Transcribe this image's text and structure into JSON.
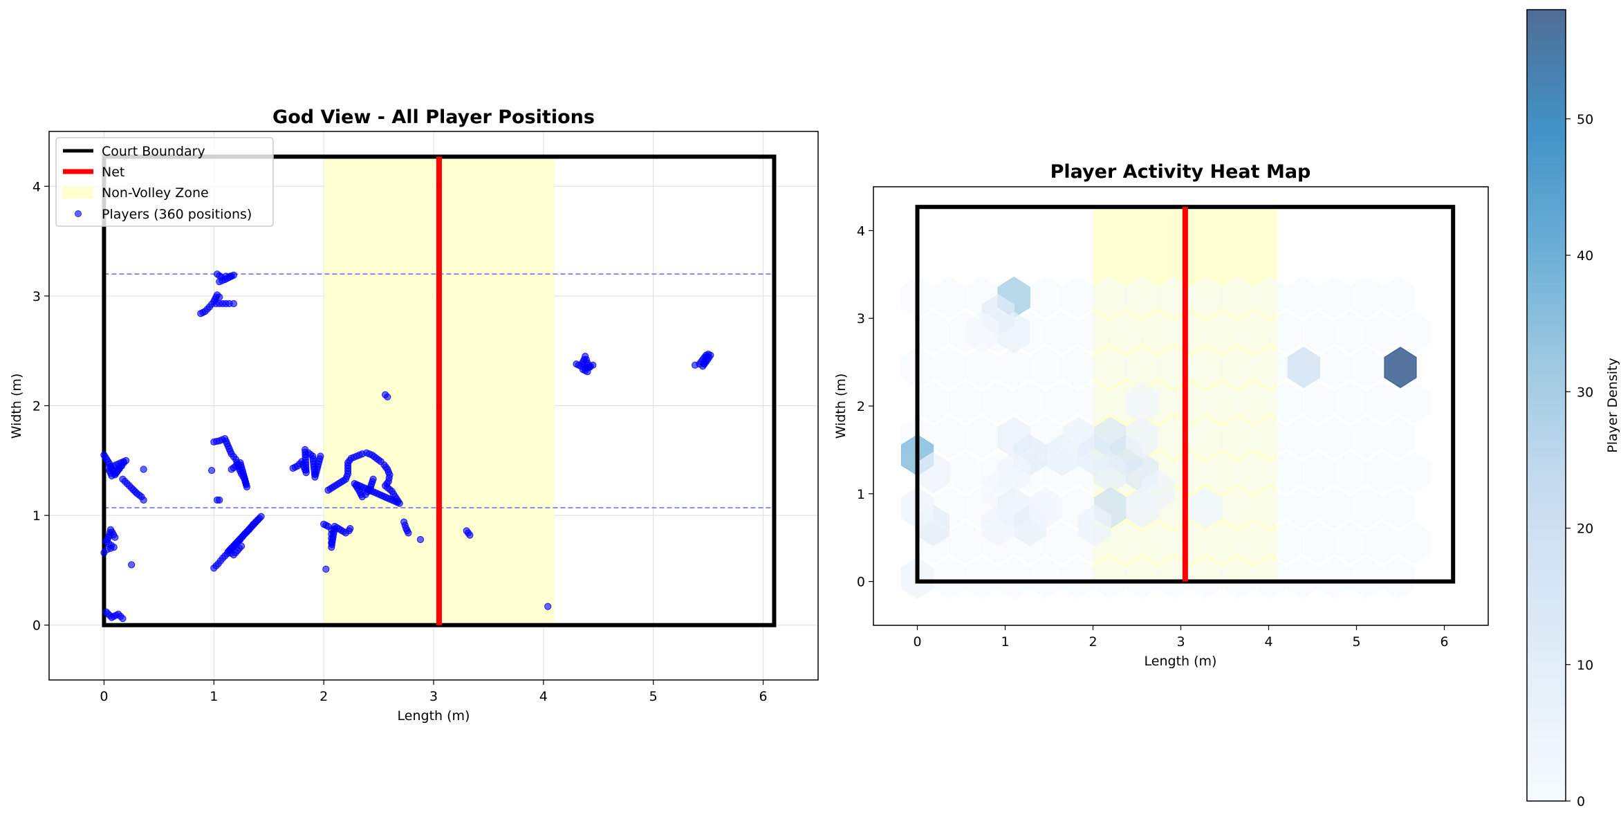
{
  "figure": {
    "colors": {
      "court": "#000000",
      "net": "#ff0000",
      "nvz_fill": "#ffffcc",
      "player": "#0000ff",
      "guide": "#6666ff",
      "grid": "#dddddd",
      "colormap_low": "#f7fbff",
      "colormap_high": "#08306b"
    }
  },
  "chart_data": [
    {
      "type": "scatter",
      "title": "God View - All Player Positions",
      "xlabel": "Length (m)",
      "ylabel": "Width (m)",
      "xlim": [
        -0.5,
        6.5
      ],
      "ylim": [
        -0.5,
        4.5
      ],
      "xticks": [
        0,
        1,
        2,
        3,
        4,
        5,
        6
      ],
      "yticks": [
        0,
        1,
        2,
        3,
        4
      ],
      "grid": true,
      "legend": {
        "placement": "top-left",
        "entries": [
          {
            "label": "Court Boundary",
            "kind": "line",
            "color": "#000000"
          },
          {
            "label": "Net",
            "kind": "line",
            "color": "#ff0000"
          },
          {
            "label": "Non-Volley Zone",
            "kind": "patch",
            "color": "#ffffcc"
          },
          {
            "label": "Players (360 positions)",
            "kind": "marker",
            "color": "#0000ff"
          }
        ]
      },
      "court": {
        "length": 6.1,
        "width": 4.27
      },
      "net_x": 3.05,
      "nvz": [
        2.0,
        4.1
      ],
      "guide_lines_y": [
        1.07,
        3.2
      ],
      "clusters": [
        {
          "path": [
            [
              0.88,
              2.84
            ],
            [
              0.92,
              2.86
            ],
            [
              0.96,
              2.9
            ],
            [
              1.0,
              2.95
            ],
            [
              1.03,
              3.01
            ],
            [
              1.05,
              2.99
            ]
          ]
        },
        {
          "path": [
            [
              1.02,
              2.93
            ],
            [
              1.08,
              2.93
            ],
            [
              1.14,
              2.93
            ],
            [
              1.18,
              2.93
            ]
          ]
        },
        {
          "path": [
            [
              1.03,
              3.2
            ],
            [
              1.07,
              3.17
            ],
            [
              1.11,
              3.18
            ],
            [
              1.15,
              3.18
            ],
            [
              1.18,
              3.19
            ],
            [
              1.1,
              3.15
            ],
            [
              1.05,
              3.13
            ]
          ]
        },
        {
          "path": [
            [
              0.0,
              1.55
            ],
            [
              0.05,
              1.47
            ],
            [
              0.08,
              1.4
            ],
            [
              0.1,
              1.37
            ],
            [
              0.14,
              1.43
            ],
            [
              0.18,
              1.48
            ],
            [
              0.2,
              1.5
            ],
            [
              0.04,
              1.43
            ],
            [
              0.07,
              1.36
            ],
            [
              0.12,
              1.4
            ],
            [
              0.16,
              1.45
            ]
          ]
        },
        {
          "path": [
            [
              0.17,
              1.33
            ],
            [
              0.21,
              1.29
            ],
            [
              0.25,
              1.25
            ],
            [
              0.3,
              1.2
            ],
            [
              0.34,
              1.17
            ],
            [
              0.36,
              1.14
            ]
          ]
        },
        {
          "point": [
            0.36,
            1.42
          ]
        },
        {
          "path": [
            [
              0.0,
              0.66
            ],
            [
              0.03,
              0.69
            ],
            [
              0.06,
              0.7
            ],
            [
              0.09,
              0.71
            ],
            [
              0.02,
              0.76
            ],
            [
              0.05,
              0.82
            ],
            [
              0.06,
              0.87
            ],
            [
              0.1,
              0.8
            ]
          ]
        },
        {
          "point": [
            0.25,
            0.55
          ]
        },
        {
          "path": [
            [
              0.02,
              0.12
            ],
            [
              0.07,
              0.07
            ],
            [
              0.13,
              0.1
            ],
            [
              0.17,
              0.06
            ]
          ]
        },
        {
          "path": [
            [
              1.0,
              1.67
            ],
            [
              1.05,
              1.68
            ],
            [
              1.1,
              1.7
            ],
            [
              1.13,
              1.63
            ],
            [
              1.16,
              1.56
            ],
            [
              1.2,
              1.51
            ],
            [
              1.22,
              1.45
            ],
            [
              1.25,
              1.38
            ],
            [
              1.28,
              1.33
            ],
            [
              1.3,
              1.26
            ],
            [
              1.24,
              1.48
            ],
            [
              1.16,
              1.42
            ]
          ]
        },
        {
          "point": [
            0.98,
            1.41
          ]
        },
        {
          "path": [
            [
              1.03,
              1.14
            ],
            [
              1.05,
              1.14
            ]
          ]
        },
        {
          "path": [
            [
              1.0,
              0.52
            ],
            [
              1.04,
              0.56
            ],
            [
              1.08,
              0.61
            ],
            [
              1.12,
              0.65
            ],
            [
              1.16,
              0.7
            ],
            [
              1.2,
              0.74
            ],
            [
              1.24,
              0.78
            ],
            [
              1.28,
              0.83
            ],
            [
              1.32,
              0.87
            ],
            [
              1.36,
              0.92
            ],
            [
              1.4,
              0.96
            ],
            [
              1.43,
              0.99
            ],
            [
              1.13,
              0.67
            ],
            [
              1.18,
              0.64
            ],
            [
              1.25,
              0.72
            ]
          ]
        },
        {
          "path": [
            [
              1.72,
              1.43
            ],
            [
              1.76,
              1.45
            ],
            [
              1.8,
              1.49
            ],
            [
              1.82,
              1.44
            ],
            [
              1.84,
              1.39
            ],
            [
              1.83,
              1.6
            ],
            [
              1.86,
              1.57
            ],
            [
              1.9,
              1.54
            ],
            [
              1.92,
              1.35
            ],
            [
              1.97,
              1.54
            ]
          ]
        },
        {
          "path": [
            [
              2.04,
              1.23
            ],
            [
              2.2,
              1.33
            ],
            [
              2.22,
              1.38
            ],
            [
              2.22,
              1.48
            ],
            [
              2.25,
              1.52
            ],
            [
              2.3,
              1.54
            ],
            [
              2.35,
              1.56
            ],
            [
              2.39,
              1.57
            ],
            [
              2.44,
              1.55
            ],
            [
              2.48,
              1.52
            ],
            [
              2.52,
              1.49
            ],
            [
              2.55,
              1.46
            ],
            [
              2.58,
              1.42
            ],
            [
              2.6,
              1.37
            ],
            [
              2.59,
              1.31
            ],
            [
              2.56,
              1.27
            ],
            [
              2.62,
              1.22
            ],
            [
              2.65,
              1.17
            ],
            [
              2.69,
              1.11
            ],
            [
              2.28,
              1.29
            ],
            [
              2.32,
              1.23
            ],
            [
              2.35,
              1.17
            ],
            [
              2.38,
              1.19
            ],
            [
              2.42,
              1.24
            ],
            [
              2.45,
              1.33
            ]
          ]
        },
        {
          "path": [
            [
              2.0,
              0.92
            ],
            [
              2.04,
              0.9
            ],
            [
              2.07,
              0.87
            ],
            [
              2.07,
              0.83
            ],
            [
              2.07,
              0.79
            ],
            [
              2.07,
              0.75
            ],
            [
              2.07,
              0.71
            ],
            [
              2.1,
              0.9
            ],
            [
              2.2,
              0.84
            ],
            [
              2.23,
              0.86
            ],
            [
              2.24,
              0.88
            ]
          ]
        },
        {
          "point": [
            2.02,
            0.51
          ]
        },
        {
          "path": [
            [
              2.56,
              2.1
            ],
            [
              2.58,
              2.08
            ]
          ]
        },
        {
          "path": [
            [
              2.73,
              0.94
            ],
            [
              2.75,
              0.88
            ],
            [
              2.77,
              0.84
            ]
          ]
        },
        {
          "point": [
            2.88,
            0.78
          ]
        },
        {
          "path": [
            [
              3.3,
              0.86
            ],
            [
              3.33,
              0.82
            ]
          ]
        },
        {
          "point": [
            4.04,
            0.17
          ]
        },
        {
          "path": [
            [
              4.3,
              2.38
            ],
            [
              4.34,
              2.36
            ],
            [
              4.37,
              2.42
            ],
            [
              4.38,
              2.45
            ],
            [
              4.4,
              2.39
            ],
            [
              4.42,
              2.35
            ],
            [
              4.45,
              2.37
            ],
            [
              4.36,
              2.33
            ],
            [
              4.4,
              2.31
            ]
          ]
        },
        {
          "path": [
            [
              5.38,
              2.37
            ],
            [
              5.42,
              2.38
            ],
            [
              5.45,
              2.42
            ],
            [
              5.48,
              2.46
            ],
            [
              5.5,
              2.47
            ],
            [
              5.45,
              2.36
            ],
            [
              5.48,
              2.4
            ],
            [
              5.52,
              2.46
            ]
          ]
        }
      ]
    },
    {
      "type": "heatmap",
      "title": "Player Activity Heat Map",
      "xlabel": "Length (m)",
      "ylabel": "Width (m)",
      "xlim": [
        -0.5,
        6.5
      ],
      "ylim": [
        -0.5,
        4.5
      ],
      "xticks": [
        0,
        1,
        2,
        3,
        4,
        5,
        6
      ],
      "yticks": [
        0,
        1,
        2,
        3,
        4
      ],
      "court": {
        "length": 6.1,
        "width": 4.27
      },
      "net_x": 3.05,
      "nvz": [
        2.0,
        4.1
      ],
      "hex_radius": 0.21,
      "colorbar": {
        "label": "Player Density",
        "min": 0,
        "max": 58,
        "ticks": [
          0,
          10,
          20,
          30,
          40,
          50
        ]
      },
      "hexbins": [
        {
          "x": 1.1,
          "y": 3.24,
          "v": 32
        },
        {
          "x": 0.92,
          "y": 3.04,
          "v": 10
        },
        {
          "x": 1.1,
          "y": 2.84,
          "v": 7
        },
        {
          "x": 0.74,
          "y": 2.84,
          "v": 2
        },
        {
          "x": 4.4,
          "y": 2.44,
          "v": 20
        },
        {
          "x": 5.5,
          "y": 2.44,
          "v": 58
        },
        {
          "x": 0.0,
          "y": 1.44,
          "v": 40
        },
        {
          "x": 0.18,
          "y": 1.24,
          "v": 4
        },
        {
          "x": 1.1,
          "y": 1.64,
          "v": 7
        },
        {
          "x": 1.28,
          "y": 1.44,
          "v": 10
        },
        {
          "x": 1.65,
          "y": 1.44,
          "v": 8
        },
        {
          "x": 1.84,
          "y": 1.64,
          "v": 5
        },
        {
          "x": 2.02,
          "y": 1.44,
          "v": 9
        },
        {
          "x": 2.2,
          "y": 1.64,
          "v": 14
        },
        {
          "x": 2.38,
          "y": 1.44,
          "v": 16
        },
        {
          "x": 2.2,
          "y": 1.24,
          "v": 8
        },
        {
          "x": 2.56,
          "y": 1.24,
          "v": 12
        },
        {
          "x": 2.56,
          "y": 1.64,
          "v": 4
        },
        {
          "x": 2.56,
          "y": 2.04,
          "v": 3
        },
        {
          "x": 1.1,
          "y": 1.24,
          "v": 4
        },
        {
          "x": 0.92,
          "y": 1.04,
          "v": 2
        },
        {
          "x": 1.1,
          "y": 0.84,
          "v": 6
        },
        {
          "x": 1.28,
          "y": 0.64,
          "v": 8
        },
        {
          "x": 0.92,
          "y": 0.64,
          "v": 4
        },
        {
          "x": 1.46,
          "y": 0.84,
          "v": 3
        },
        {
          "x": 0.18,
          "y": 0.64,
          "v": 10
        },
        {
          "x": 0.0,
          "y": 0.84,
          "v": 4
        },
        {
          "x": 2.2,
          "y": 0.84,
          "v": 20
        },
        {
          "x": 2.02,
          "y": 0.64,
          "v": 5
        },
        {
          "x": 2.56,
          "y": 0.84,
          "v": 5
        },
        {
          "x": 2.74,
          "y": 1.04,
          "v": 4
        },
        {
          "x": 3.28,
          "y": 0.84,
          "v": 3
        },
        {
          "x": 0.0,
          "y": 0.04,
          "v": 4
        }
      ]
    }
  ]
}
